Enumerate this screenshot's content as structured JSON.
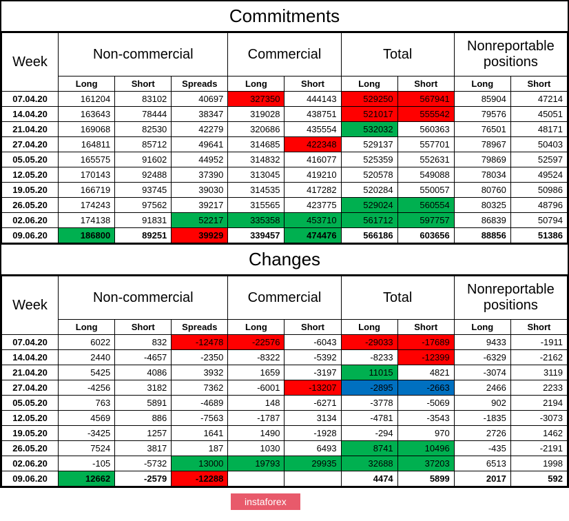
{
  "watermark": "instaforex",
  "colors": {
    "green": "#00b050",
    "red": "#ff0000",
    "blue": "#0070c0",
    "white": "#ffffff",
    "black": "#000000"
  },
  "tables": {
    "commitments": {
      "title": "Commitments",
      "week_label": "Week",
      "groups": [
        "Non-commercial",
        "Commercial",
        "Total",
        "Nonreportable positions"
      ],
      "group_spans": [
        3,
        2,
        2,
        2
      ],
      "subheaders": [
        "Long",
        "Short",
        "Spreads",
        "Long",
        "Short",
        "Long",
        "Short",
        "Long",
        "Short"
      ],
      "rows": [
        {
          "week": "07.04.20",
          "cells": [
            {
              "v": "161204"
            },
            {
              "v": "83102"
            },
            {
              "v": "40697"
            },
            {
              "v": "327350",
              "bg": "red"
            },
            {
              "v": "444143"
            },
            {
              "v": "529250",
              "bg": "red"
            },
            {
              "v": "567941",
              "bg": "red"
            },
            {
              "v": "85904"
            },
            {
              "v": "47214"
            }
          ]
        },
        {
          "week": "14.04.20",
          "cells": [
            {
              "v": "163643"
            },
            {
              "v": "78444"
            },
            {
              "v": "38347"
            },
            {
              "v": "319028"
            },
            {
              "v": "438751"
            },
            {
              "v": "521017",
              "bg": "red"
            },
            {
              "v": "555542",
              "bg": "red"
            },
            {
              "v": "79576"
            },
            {
              "v": "45051"
            }
          ]
        },
        {
          "week": "21.04.20",
          "cells": [
            {
              "v": "169068"
            },
            {
              "v": "82530"
            },
            {
              "v": "42279"
            },
            {
              "v": "320686"
            },
            {
              "v": "435554"
            },
            {
              "v": "532032",
              "bg": "green"
            },
            {
              "v": "560363"
            },
            {
              "v": "76501"
            },
            {
              "v": "48171"
            }
          ]
        },
        {
          "week": "27.04.20",
          "cells": [
            {
              "v": "164811"
            },
            {
              "v": "85712"
            },
            {
              "v": "49641"
            },
            {
              "v": "314685"
            },
            {
              "v": "422348",
              "bg": "red"
            },
            {
              "v": "529137"
            },
            {
              "v": "557701"
            },
            {
              "v": "78967"
            },
            {
              "v": "50403"
            }
          ]
        },
        {
          "week": "05.05.20",
          "cells": [
            {
              "v": "165575"
            },
            {
              "v": "91602"
            },
            {
              "v": "44952"
            },
            {
              "v": "314832"
            },
            {
              "v": "416077"
            },
            {
              "v": "525359"
            },
            {
              "v": "552631"
            },
            {
              "v": "79869"
            },
            {
              "v": "52597"
            }
          ]
        },
        {
          "week": "12.05.20",
          "cells": [
            {
              "v": "170143"
            },
            {
              "v": "92488"
            },
            {
              "v": "37390"
            },
            {
              "v": "313045"
            },
            {
              "v": "419210"
            },
            {
              "v": "520578"
            },
            {
              "v": "549088"
            },
            {
              "v": "78034"
            },
            {
              "v": "49524"
            }
          ]
        },
        {
          "week": "19.05.20",
          "cells": [
            {
              "v": "166719"
            },
            {
              "v": "93745"
            },
            {
              "v": "39030"
            },
            {
              "v": "314535"
            },
            {
              "v": "417282"
            },
            {
              "v": "520284"
            },
            {
              "v": "550057"
            },
            {
              "v": "80760"
            },
            {
              "v": "50986"
            }
          ]
        },
        {
          "week": "26.05.20",
          "cells": [
            {
              "v": "174243"
            },
            {
              "v": "97562"
            },
            {
              "v": "39217"
            },
            {
              "v": "315565"
            },
            {
              "v": "423775"
            },
            {
              "v": "529024",
              "bg": "green"
            },
            {
              "v": "560554",
              "bg": "green"
            },
            {
              "v": "80325"
            },
            {
              "v": "48796"
            }
          ]
        },
        {
          "week": "02.06.20",
          "cells": [
            {
              "v": "174138"
            },
            {
              "v": "91831"
            },
            {
              "v": "52217",
              "bg": "green"
            },
            {
              "v": "335358",
              "bg": "green"
            },
            {
              "v": "453710",
              "bg": "green"
            },
            {
              "v": "561712",
              "bg": "green"
            },
            {
              "v": "597757",
              "bg": "green"
            },
            {
              "v": "86839"
            },
            {
              "v": "50794"
            }
          ]
        },
        {
          "week": "09.06.20",
          "cells": [
            {
              "v": "186800",
              "bg": "green",
              "bold": true
            },
            {
              "v": "89251",
              "bold": true
            },
            {
              "v": "39929",
              "bg": "red",
              "bold": true
            },
            {
              "v": "339457",
              "bold": true
            },
            {
              "v": "474476",
              "bg": "green",
              "bold": true
            },
            {
              "v": "566186",
              "bold": true
            },
            {
              "v": "603656",
              "bold": true
            },
            {
              "v": "88856",
              "bold": true
            },
            {
              "v": "51386",
              "bold": true
            }
          ]
        }
      ]
    },
    "changes": {
      "title": "Changes",
      "week_label": "Week",
      "groups": [
        "Non-commercial",
        "Commercial",
        "Total",
        "Nonreportable positions"
      ],
      "group_spans": [
        3,
        2,
        2,
        2
      ],
      "subheaders": [
        "Long",
        "Short",
        "Spreads",
        "Long",
        "Short",
        "Long",
        "Short",
        "Long",
        "Short"
      ],
      "rows": [
        {
          "week": "07.04.20",
          "cells": [
            {
              "v": "6022"
            },
            {
              "v": "832"
            },
            {
              "v": "-12478",
              "bg": "red"
            },
            {
              "v": "-22576",
              "bg": "red"
            },
            {
              "v": "-6043"
            },
            {
              "v": "-29033",
              "bg": "red"
            },
            {
              "v": "-17689",
              "bg": "red"
            },
            {
              "v": "9433"
            },
            {
              "v": "-1911"
            }
          ]
        },
        {
          "week": "14.04.20",
          "cells": [
            {
              "v": "2440"
            },
            {
              "v": "-4657"
            },
            {
              "v": "-2350"
            },
            {
              "v": "-8322"
            },
            {
              "v": "-5392"
            },
            {
              "v": "-8233"
            },
            {
              "v": "-12399",
              "bg": "red"
            },
            {
              "v": "-6329"
            },
            {
              "v": "-2162"
            }
          ]
        },
        {
          "week": "21.04.20",
          "cells": [
            {
              "v": "5425"
            },
            {
              "v": "4086"
            },
            {
              "v": "3932"
            },
            {
              "v": "1659"
            },
            {
              "v": "-3197"
            },
            {
              "v": "11015",
              "bg": "green"
            },
            {
              "v": "4821"
            },
            {
              "v": "-3074"
            },
            {
              "v": "3119"
            }
          ]
        },
        {
          "week": "27.04.20",
          "cells": [
            {
              "v": "-4256"
            },
            {
              "v": "3182"
            },
            {
              "v": "7362"
            },
            {
              "v": "-6001"
            },
            {
              "v": "-13207",
              "bg": "red"
            },
            {
              "v": "-2895",
              "bg": "blue"
            },
            {
              "v": "-2663",
              "bg": "blue"
            },
            {
              "v": "2466"
            },
            {
              "v": "2233"
            }
          ]
        },
        {
          "week": "05.05.20",
          "cells": [
            {
              "v": "763"
            },
            {
              "v": "5891"
            },
            {
              "v": "-4689"
            },
            {
              "v": "148"
            },
            {
              "v": "-6271"
            },
            {
              "v": "-3778"
            },
            {
              "v": "-5069"
            },
            {
              "v": "902"
            },
            {
              "v": "2194"
            }
          ]
        },
        {
          "week": "12.05.20",
          "cells": [
            {
              "v": "4569"
            },
            {
              "v": "886"
            },
            {
              "v": "-7563"
            },
            {
              "v": "-1787"
            },
            {
              "v": "3134"
            },
            {
              "v": "-4781"
            },
            {
              "v": "-3543"
            },
            {
              "v": "-1835"
            },
            {
              "v": "-3073"
            }
          ]
        },
        {
          "week": "19.05.20",
          "cells": [
            {
              "v": "-3425"
            },
            {
              "v": "1257"
            },
            {
              "v": "1641"
            },
            {
              "v": "1490"
            },
            {
              "v": "-1928"
            },
            {
              "v": "-294"
            },
            {
              "v": "970"
            },
            {
              "v": "2726"
            },
            {
              "v": "1462"
            }
          ]
        },
        {
          "week": "26.05.20",
          "cells": [
            {
              "v": "7524"
            },
            {
              "v": "3817"
            },
            {
              "v": "187"
            },
            {
              "v": "1030"
            },
            {
              "v": "6493"
            },
            {
              "v": "8741",
              "bg": "green"
            },
            {
              "v": "10496",
              "bg": "green"
            },
            {
              "v": "-435"
            },
            {
              "v": "-2191"
            }
          ]
        },
        {
          "week": "02.06.20",
          "cells": [
            {
              "v": "-105"
            },
            {
              "v": "-5732"
            },
            {
              "v": "13000",
              "bg": "green"
            },
            {
              "v": "19793",
              "bg": "green"
            },
            {
              "v": "29935",
              "bg": "green"
            },
            {
              "v": "32688",
              "bg": "green"
            },
            {
              "v": "37203",
              "bg": "green"
            },
            {
              "v": "6513"
            },
            {
              "v": "1998"
            }
          ]
        },
        {
          "week": "09.06.20",
          "cells": [
            {
              "v": "12662",
              "bg": "green",
              "bold": true
            },
            {
              "v": "-2579",
              "bold": true
            },
            {
              "v": "-12288",
              "bg": "red",
              "bold": true
            },
            {
              "v": "",
              "bold": true
            },
            {
              "v": "",
              "bold": true
            },
            {
              "v": "4474",
              "bold": true
            },
            {
              "v": "5899",
              "bold": true
            },
            {
              "v": "2017",
              "bold": true
            },
            {
              "v": "592",
              "bold": true
            }
          ]
        }
      ]
    }
  }
}
